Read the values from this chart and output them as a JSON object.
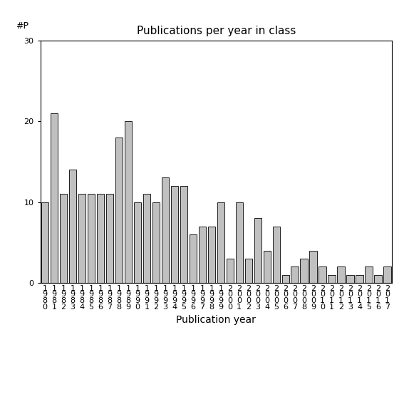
{
  "title": "Publications per year in class",
  "xlabel": "Publication year",
  "ylabel": "#P",
  "categories": [
    "1\n9\n8\n0",
    "1\n9\n8\n1",
    "1\n9\n8\n2",
    "1\n9\n8\n3",
    "1\n9\n8\n4",
    "1\n9\n8\n5",
    "1\n9\n8\n6",
    "1\n9\n8\n7",
    "1\n9\n8\n8",
    "1\n9\n8\n9",
    "1\n9\n9\n0",
    "1\n9\n9\n1",
    "1\n9\n9\n2",
    "1\n9\n9\n3",
    "1\n9\n9\n4",
    "1\n9\n9\n5",
    "1\n9\n9\n6",
    "1\n9\n9\n7",
    "1\n9\n9\n8",
    "1\n9\n9\n9",
    "2\n0\n0\n0",
    "2\n0\n0\n1",
    "2\n0\n0\n2",
    "2\n0\n0\n3",
    "2\n0\n0\n4",
    "2\n0\n0\n5",
    "2\n0\n0\n6",
    "2\n0\n0\n7",
    "2\n0\n0\n8",
    "2\n0\n0\n9",
    "2\n0\n1\n0",
    "2\n0\n1\n1",
    "2\n0\n1\n2",
    "2\n0\n1\n3",
    "2\n0\n1\n4",
    "2\n0\n1\n5",
    "2\n0\n1\n6",
    "2\n0\n1\n7"
  ],
  "values": [
    10,
    21,
    11,
    14,
    11,
    11,
    11,
    11,
    18,
    20,
    10,
    11,
    10,
    13,
    12,
    12,
    6,
    7,
    7,
    10,
    3,
    10,
    3,
    8,
    4,
    7,
    1,
    2,
    3,
    4,
    2,
    1,
    2,
    1,
    1,
    2,
    1,
    2
  ],
  "bar_color": "#c0c0c0",
  "bar_edgecolor": "#000000",
  "ylim": [
    0,
    30
  ],
  "yticks": [
    0,
    10,
    20,
    30
  ],
  "background_color": "#ffffff",
  "title_fontsize": 11,
  "xlabel_fontsize": 10,
  "tick_fontsize": 8,
  "ylabel_fontsize": 9
}
